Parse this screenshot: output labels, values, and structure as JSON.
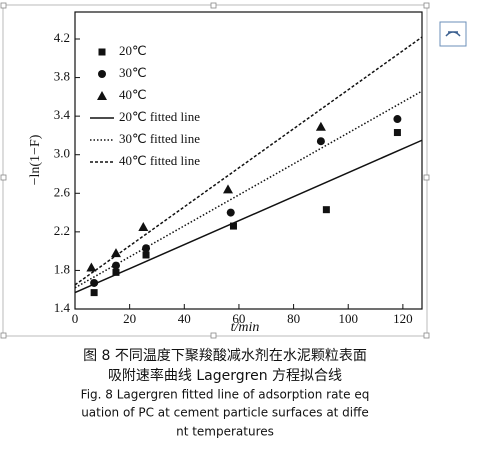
{
  "chart_data": {
    "type": "scatter",
    "xlabel": "t/min",
    "ylabel": "−ln(1−F)",
    "xlim": [
      0,
      127
    ],
    "ylim": [
      1.4,
      4.48
    ],
    "xticks": [
      0,
      20,
      40,
      60,
      80,
      100,
      120
    ],
    "yticks": [
      1.4,
      1.8,
      2.2,
      2.6,
      {
        "value": 3,
        "label": "3.0"
      },
      3.4,
      3.8,
      4.2
    ],
    "color": "#111111",
    "series": [
      {
        "name": "20℃",
        "marker": "square",
        "x": [
          7,
          15,
          26,
          58,
          92,
          118
        ],
        "values": [
          1.57,
          1.78,
          1.96,
          2.26,
          2.43,
          3.23
        ]
      },
      {
        "name": "30℃",
        "marker": "circle",
        "x": [
          7,
          15,
          26,
          57,
          90,
          118
        ],
        "values": [
          1.67,
          1.85,
          2.03,
          2.4,
          3.14,
          3.37
        ]
      },
      {
        "name": "40℃",
        "marker": "triangle",
        "x": [
          6,
          15,
          25,
          56,
          90
        ],
        "values": [
          1.83,
          1.98,
          2.25,
          2.64,
          3.29
        ]
      },
      {
        "name": "20℃ fitted line",
        "line": "solid",
        "x": [
          0,
          127
        ],
        "values": [
          1.57,
          3.15
        ]
      },
      {
        "name": "30℃ fitted line",
        "line": "dotted",
        "x": [
          0,
          127
        ],
        "values": [
          1.62,
          3.66
        ]
      },
      {
        "name": "40℃ fitted line",
        "line": "dashed",
        "x": [
          0,
          127
        ],
        "values": [
          1.65,
          4.22
        ]
      }
    ]
  },
  "caption": {
    "chinese": [
      "图 8  不同温度下聚羧酸减水剂在水泥颗粒表面",
      "吸附速率曲线 Lagergren 方程拟合线"
    ],
    "english": [
      "Fig. 8    Lagergren fitted line of adsorption rate  eq",
      "uation of PC at cement particle surfaces  at diffe",
      "nt temperatures"
    ]
  }
}
